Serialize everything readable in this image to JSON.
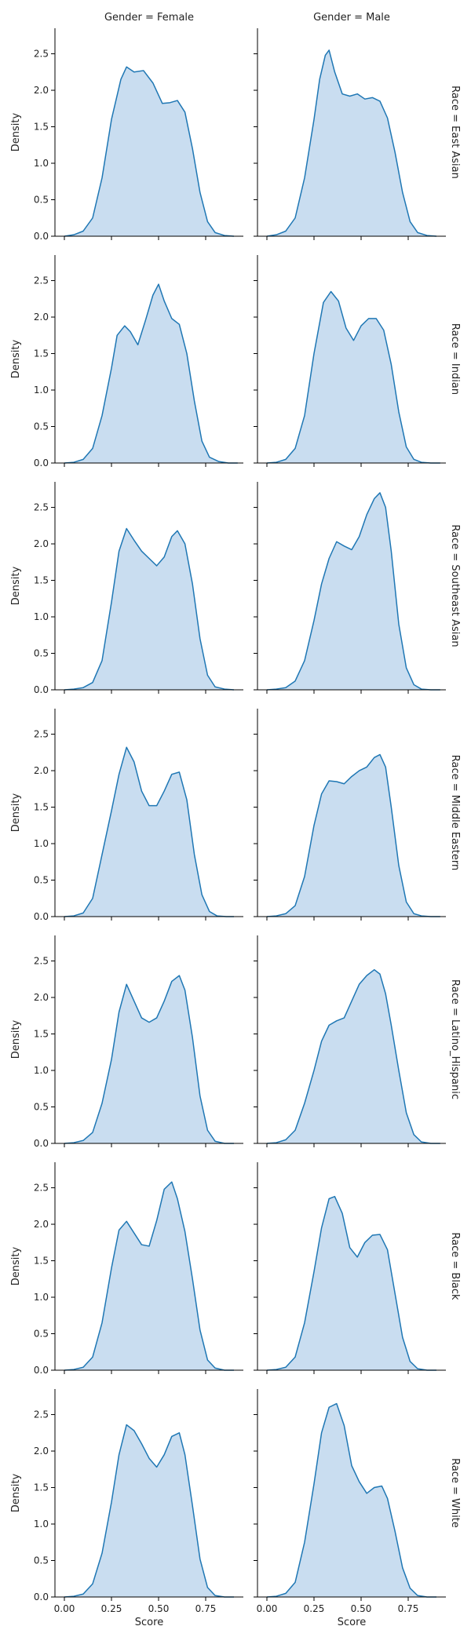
{
  "chart_data": {
    "type": "area",
    "row_titles": [
      "Race = East Asian",
      "Race = Indian",
      "Race = Southeast Asian",
      "Race = Middle Eastern",
      "Race = Latino_Hispanic",
      "Race = Black",
      "Race = White"
    ],
    "col_titles": [
      "Gender = Female",
      "Gender = Male"
    ],
    "xlabel": "Score",
    "ylabel": "Density",
    "xlim": [
      -0.05,
      0.95
    ],
    "ylim": [
      0,
      2.85
    ],
    "xticks": [
      0.0,
      0.25,
      0.5,
      0.75
    ],
    "xtick_labels": [
      "0.00",
      "0.25",
      "0.50",
      "0.75"
    ],
    "yticks": [
      0.0,
      0.5,
      1.0,
      1.5,
      2.0,
      2.5
    ],
    "ytick_labels": [
      "0.0",
      "0.5",
      "1.0",
      "1.5",
      "2.0",
      "2.5"
    ],
    "color": "#1f77b4",
    "fill_color": "#c6dbef",
    "panels": [
      [
        {
          "x": [
            0.0,
            0.05,
            0.1,
            0.15,
            0.2,
            0.25,
            0.3,
            0.33,
            0.37,
            0.42,
            0.47,
            0.52,
            0.56,
            0.6,
            0.64,
            0.68,
            0.72,
            0.76,
            0.8,
            0.85,
            0.9
          ],
          "y": [
            0.0,
            0.02,
            0.07,
            0.25,
            0.8,
            1.6,
            2.15,
            2.32,
            2.25,
            2.27,
            2.1,
            1.82,
            1.83,
            1.86,
            1.7,
            1.2,
            0.6,
            0.2,
            0.05,
            0.01,
            0.0
          ]
        },
        {
          "x": [
            0.0,
            0.05,
            0.1,
            0.15,
            0.2,
            0.25,
            0.28,
            0.31,
            0.33,
            0.36,
            0.4,
            0.44,
            0.48,
            0.52,
            0.56,
            0.6,
            0.64,
            0.68,
            0.72,
            0.76,
            0.8,
            0.85,
            0.9
          ],
          "y": [
            0.0,
            0.02,
            0.07,
            0.25,
            0.8,
            1.6,
            2.15,
            2.48,
            2.55,
            2.25,
            1.95,
            1.92,
            1.95,
            1.88,
            1.9,
            1.85,
            1.62,
            1.15,
            0.6,
            0.2,
            0.05,
            0.01,
            0.0
          ]
        }
      ],
      [
        {
          "x": [
            0.0,
            0.05,
            0.1,
            0.15,
            0.2,
            0.25,
            0.28,
            0.32,
            0.35,
            0.39,
            0.43,
            0.47,
            0.5,
            0.53,
            0.57,
            0.61,
            0.65,
            0.69,
            0.73,
            0.77,
            0.82,
            0.87,
            0.92
          ],
          "y": [
            0.0,
            0.01,
            0.05,
            0.2,
            0.65,
            1.3,
            1.75,
            1.88,
            1.8,
            1.62,
            1.95,
            2.3,
            2.45,
            2.22,
            1.98,
            1.9,
            1.5,
            0.85,
            0.3,
            0.08,
            0.02,
            0.0,
            0.0
          ]
        },
        {
          "x": [
            0.0,
            0.05,
            0.1,
            0.15,
            0.2,
            0.25,
            0.3,
            0.34,
            0.38,
            0.42,
            0.46,
            0.5,
            0.54,
            0.58,
            0.62,
            0.66,
            0.7,
            0.74,
            0.78,
            0.82,
            0.87,
            0.92
          ],
          "y": [
            0.0,
            0.01,
            0.05,
            0.2,
            0.65,
            1.5,
            2.2,
            2.35,
            2.22,
            1.85,
            1.68,
            1.88,
            1.98,
            1.98,
            1.82,
            1.35,
            0.7,
            0.22,
            0.05,
            0.01,
            0.0,
            0.0
          ]
        }
      ],
      [
        {
          "x": [
            0.0,
            0.05,
            0.1,
            0.15,
            0.2,
            0.25,
            0.29,
            0.33,
            0.37,
            0.41,
            0.45,
            0.49,
            0.53,
            0.57,
            0.6,
            0.64,
            0.68,
            0.72,
            0.76,
            0.8,
            0.85,
            0.9
          ],
          "y": [
            0.0,
            0.01,
            0.03,
            0.1,
            0.4,
            1.2,
            1.9,
            2.21,
            2.05,
            1.9,
            1.8,
            1.7,
            1.82,
            2.1,
            2.18,
            2.0,
            1.45,
            0.7,
            0.2,
            0.04,
            0.01,
            0.0
          ]
        },
        {
          "x": [
            0.0,
            0.05,
            0.1,
            0.15,
            0.2,
            0.25,
            0.29,
            0.33,
            0.37,
            0.41,
            0.45,
            0.49,
            0.53,
            0.57,
            0.6,
            0.63,
            0.66,
            0.7,
            0.74,
            0.78,
            0.82,
            0.87,
            0.92
          ],
          "y": [
            0.0,
            0.01,
            0.03,
            0.12,
            0.4,
            0.95,
            1.45,
            1.8,
            2.03,
            1.97,
            1.92,
            2.1,
            2.4,
            2.62,
            2.7,
            2.5,
            1.9,
            0.9,
            0.3,
            0.07,
            0.01,
            0.0,
            0.0
          ]
        }
      ],
      [
        {
          "x": [
            0.0,
            0.05,
            0.1,
            0.15,
            0.2,
            0.25,
            0.29,
            0.33,
            0.37,
            0.41,
            0.45,
            0.49,
            0.53,
            0.57,
            0.61,
            0.65,
            0.69,
            0.73,
            0.77,
            0.81,
            0.86,
            0.9
          ],
          "y": [
            0.0,
            0.01,
            0.05,
            0.25,
            0.85,
            1.45,
            1.95,
            2.32,
            2.12,
            1.72,
            1.52,
            1.52,
            1.72,
            1.95,
            1.98,
            1.6,
            0.85,
            0.3,
            0.07,
            0.01,
            0.0,
            0.0
          ]
        },
        {
          "x": [
            0.0,
            0.05,
            0.1,
            0.15,
            0.2,
            0.25,
            0.29,
            0.33,
            0.37,
            0.41,
            0.45,
            0.49,
            0.53,
            0.57,
            0.6,
            0.63,
            0.66,
            0.7,
            0.74,
            0.78,
            0.82,
            0.87,
            0.92
          ],
          "y": [
            0.0,
            0.01,
            0.04,
            0.15,
            0.55,
            1.25,
            1.68,
            1.86,
            1.85,
            1.82,
            1.92,
            2.0,
            2.05,
            2.18,
            2.22,
            2.05,
            1.5,
            0.7,
            0.2,
            0.04,
            0.01,
            0.0,
            0.0
          ]
        }
      ],
      [
        {
          "x": [
            0.0,
            0.05,
            0.1,
            0.15,
            0.2,
            0.25,
            0.29,
            0.33,
            0.37,
            0.41,
            0.45,
            0.49,
            0.53,
            0.57,
            0.61,
            0.64,
            0.68,
            0.72,
            0.76,
            0.8,
            0.85,
            0.9
          ],
          "y": [
            0.0,
            0.01,
            0.04,
            0.15,
            0.55,
            1.15,
            1.8,
            2.18,
            1.95,
            1.72,
            1.66,
            1.72,
            1.95,
            2.22,
            2.3,
            2.1,
            1.45,
            0.65,
            0.18,
            0.03,
            0.0,
            0.0
          ]
        },
        {
          "x": [
            0.0,
            0.05,
            0.1,
            0.15,
            0.2,
            0.25,
            0.29,
            0.33,
            0.37,
            0.41,
            0.45,
            0.49,
            0.53,
            0.57,
            0.6,
            0.63,
            0.66,
            0.7,
            0.74,
            0.78,
            0.82,
            0.87,
            0.92
          ],
          "y": [
            0.0,
            0.01,
            0.05,
            0.18,
            0.55,
            1.0,
            1.4,
            1.62,
            1.68,
            1.72,
            1.95,
            2.18,
            2.3,
            2.38,
            2.32,
            2.05,
            1.62,
            1.0,
            0.42,
            0.12,
            0.02,
            0.0,
            0.0
          ]
        }
      ],
      [
        {
          "x": [
            0.0,
            0.05,
            0.1,
            0.15,
            0.2,
            0.25,
            0.29,
            0.33,
            0.37,
            0.41,
            0.45,
            0.49,
            0.53,
            0.57,
            0.6,
            0.64,
            0.68,
            0.72,
            0.76,
            0.8,
            0.85,
            0.9
          ],
          "y": [
            0.0,
            0.01,
            0.04,
            0.18,
            0.65,
            1.4,
            1.92,
            2.04,
            1.88,
            1.72,
            1.7,
            2.05,
            2.48,
            2.58,
            2.35,
            1.9,
            1.25,
            0.55,
            0.14,
            0.03,
            0.0,
            0.0
          ]
        },
        {
          "x": [
            0.0,
            0.05,
            0.1,
            0.15,
            0.2,
            0.25,
            0.29,
            0.33,
            0.36,
            0.4,
            0.44,
            0.48,
            0.52,
            0.56,
            0.6,
            0.64,
            0.68,
            0.72,
            0.76,
            0.8,
            0.85,
            0.9
          ],
          "y": [
            0.0,
            0.01,
            0.04,
            0.18,
            0.65,
            1.35,
            1.95,
            2.35,
            2.38,
            2.15,
            1.68,
            1.55,
            1.75,
            1.85,
            1.86,
            1.65,
            1.05,
            0.45,
            0.12,
            0.02,
            0.0,
            0.0
          ]
        }
      ],
      [
        {
          "x": [
            0.0,
            0.05,
            0.1,
            0.15,
            0.2,
            0.25,
            0.29,
            0.33,
            0.37,
            0.41,
            0.45,
            0.49,
            0.53,
            0.57,
            0.61,
            0.64,
            0.68,
            0.72,
            0.76,
            0.8,
            0.85,
            0.9
          ],
          "y": [
            0.0,
            0.01,
            0.04,
            0.18,
            0.6,
            1.3,
            1.95,
            2.36,
            2.28,
            2.1,
            1.9,
            1.78,
            1.95,
            2.2,
            2.25,
            1.95,
            1.25,
            0.52,
            0.13,
            0.02,
            0.0,
            0.0
          ]
        },
        {
          "x": [
            0.0,
            0.05,
            0.1,
            0.15,
            0.2,
            0.25,
            0.29,
            0.33,
            0.37,
            0.41,
            0.45,
            0.49,
            0.53,
            0.57,
            0.61,
            0.64,
            0.68,
            0.72,
            0.76,
            0.8,
            0.85,
            0.9
          ],
          "y": [
            0.0,
            0.01,
            0.05,
            0.2,
            0.75,
            1.55,
            2.25,
            2.6,
            2.65,
            2.35,
            1.8,
            1.58,
            1.42,
            1.5,
            1.52,
            1.35,
            0.9,
            0.4,
            0.12,
            0.02,
            0.0,
            0.0
          ]
        }
      ]
    ]
  }
}
